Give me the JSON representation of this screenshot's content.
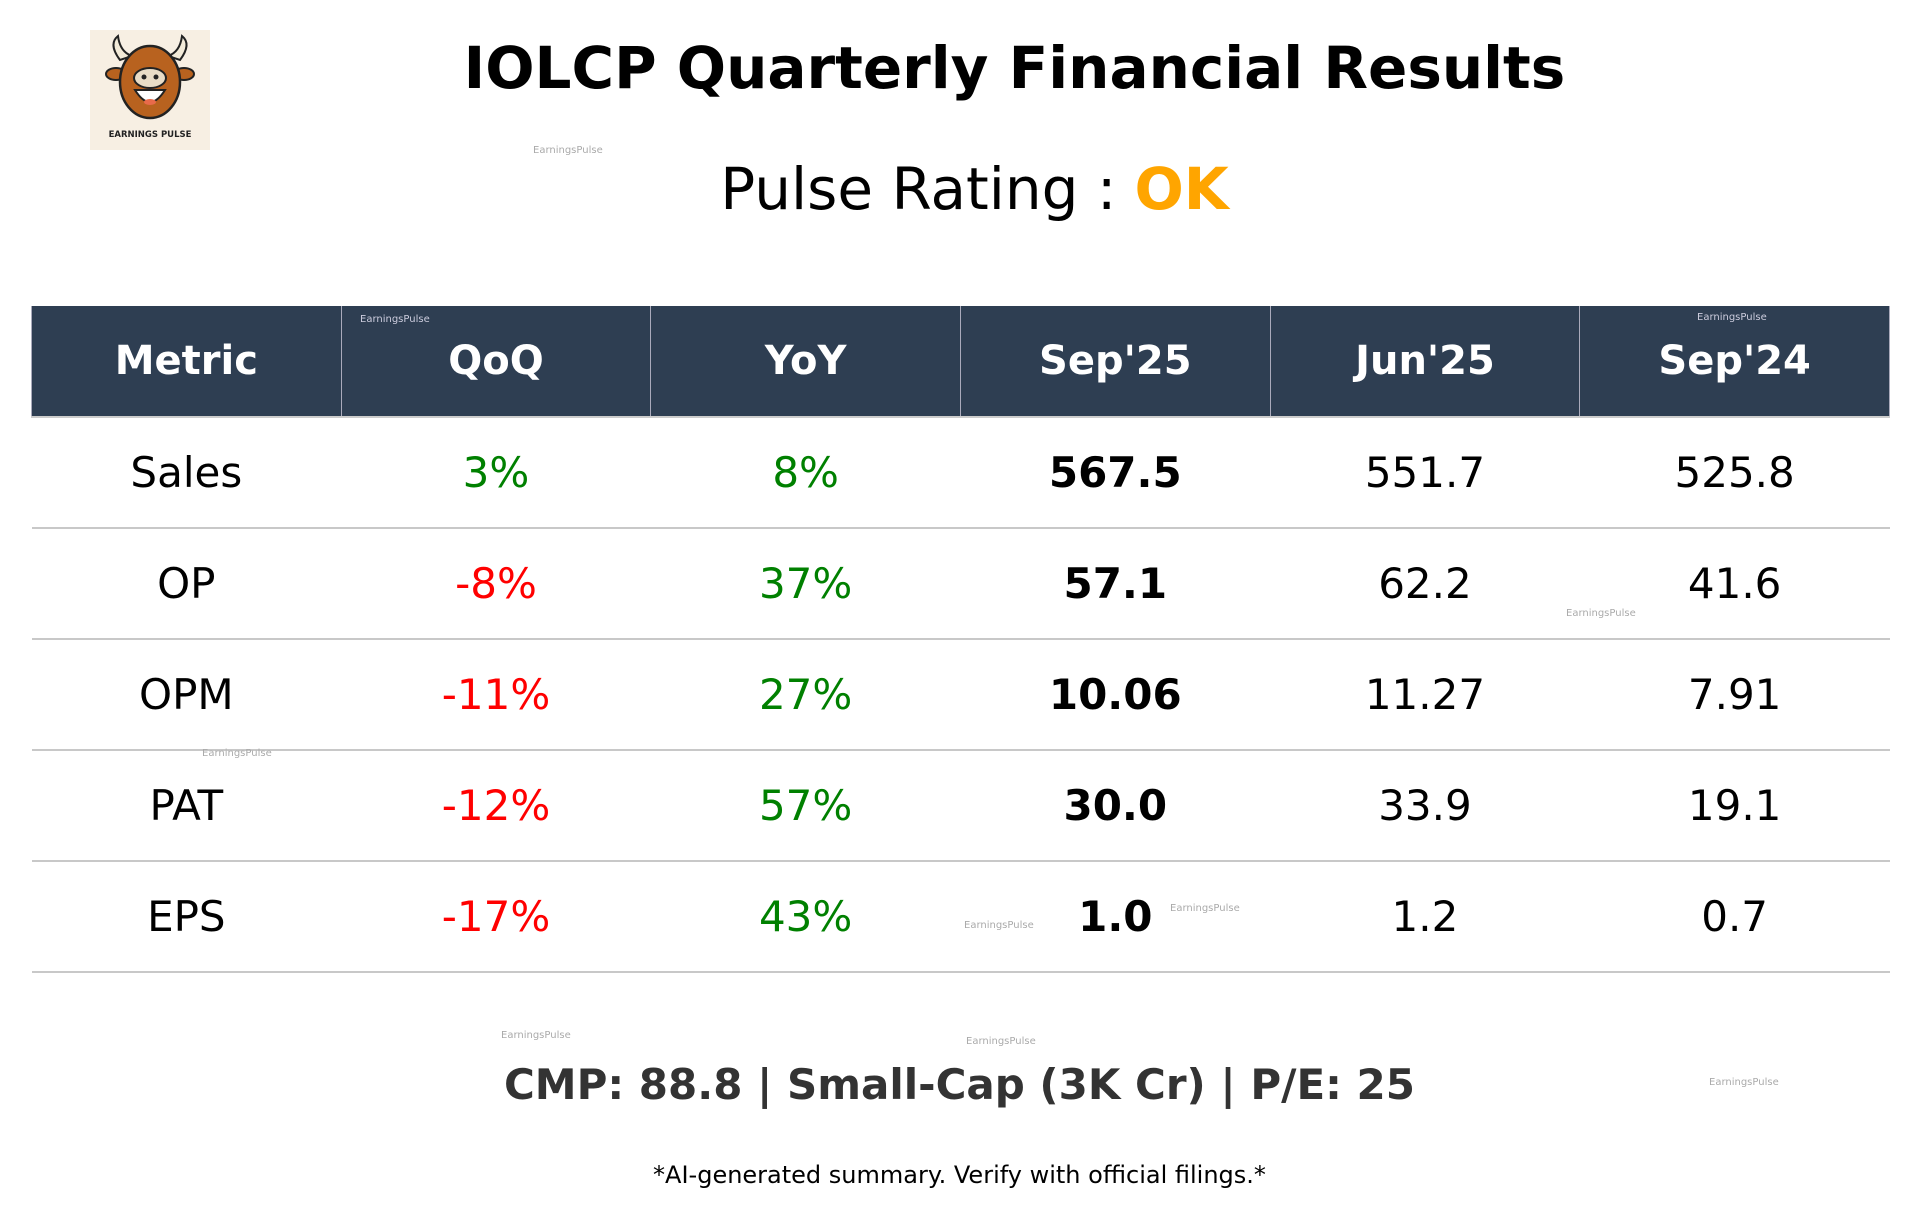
{
  "logo": {
    "text": "EARNINGS PULSE",
    "icon": "bull-mascot"
  },
  "title": "IOLCP Quarterly Financial Results",
  "rating": {
    "label": "Pulse Rating :",
    "value": "OK",
    "color": "#FFA500"
  },
  "table": {
    "headers": [
      "Metric",
      "QoQ",
      "YoY",
      "Sep'25",
      "Jun'25",
      "Sep'24"
    ],
    "rows": [
      {
        "metric": "Sales",
        "qoq": "3%",
        "yoy": "8%",
        "sep25": "567.5",
        "jun25": "551.7",
        "sep24": "525.8"
      },
      {
        "metric": "OP",
        "qoq": "-8%",
        "yoy": "37%",
        "sep25": "57.1",
        "jun25": "62.2",
        "sep24": "41.6"
      },
      {
        "metric": "OPM",
        "qoq": "-11%",
        "yoy": "27%",
        "sep25": "10.06",
        "jun25": "11.27",
        "sep24": "7.91"
      },
      {
        "metric": "PAT",
        "qoq": "-12%",
        "yoy": "57%",
        "sep25": "30.0",
        "jun25": "33.9",
        "sep24": "19.1"
      },
      {
        "metric": "EPS",
        "qoq": "-17%",
        "yoy": "43%",
        "sep25": "1.0",
        "jun25": "1.2",
        "sep24": "0.7"
      }
    ],
    "colors": {
      "header_bg": "#2e3e52",
      "positive": "#008000",
      "negative": "#ff0000"
    }
  },
  "footer": {
    "cmp": "CMP: 88.8 | Small-Cap (3K Cr) | P/E: 25",
    "note": "*AI-generated summary. Verify with official filings.*"
  },
  "watermark": "EarningsPulse"
}
